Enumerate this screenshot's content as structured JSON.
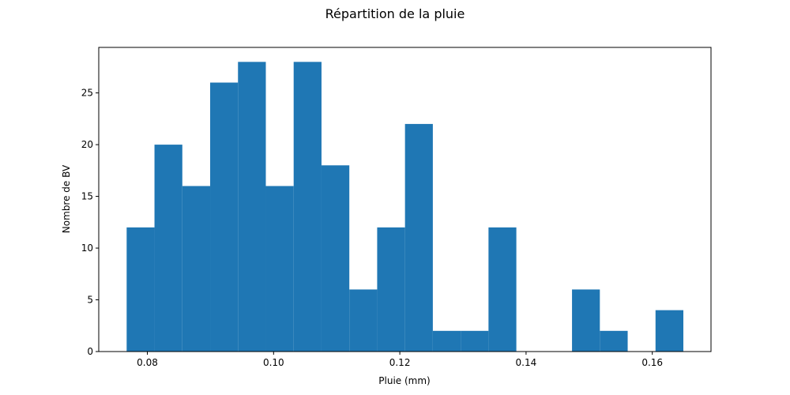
{
  "chart_data": {
    "type": "bar",
    "title": "Répartition de la pluie",
    "xlabel": "Pluie (mm)",
    "ylabel": "Nombre de BV",
    "bin_edges": [
      0.07672,
      0.08113,
      0.08554,
      0.08995,
      0.09436,
      0.09877,
      0.10318,
      0.10759,
      0.112,
      0.11641,
      0.12082,
      0.12523,
      0.12964,
      0.13405,
      0.13846,
      0.14287,
      0.14728,
      0.15169,
      0.1561,
      0.16051,
      0.16492
    ],
    "values": [
      12,
      20,
      16,
      26,
      28,
      16,
      28,
      18,
      6,
      12,
      22,
      2,
      2,
      12,
      0,
      0,
      6,
      2,
      0,
      4
    ],
    "xlim": [
      0.0723,
      0.1693
    ],
    "ylim": [
      0,
      29.4
    ],
    "xticks": [
      0.08,
      0.1,
      0.12,
      0.14,
      0.16
    ],
    "xtick_labels": [
      "0.08",
      "0.10",
      "0.12",
      "0.14",
      "0.16"
    ],
    "yticks": [
      0,
      5,
      10,
      15,
      20,
      25
    ],
    "ytick_labels": [
      "0",
      "5",
      "10",
      "15",
      "20",
      "25"
    ],
    "bar_color": "#1f77b4",
    "grid": false,
    "legend": "none"
  }
}
